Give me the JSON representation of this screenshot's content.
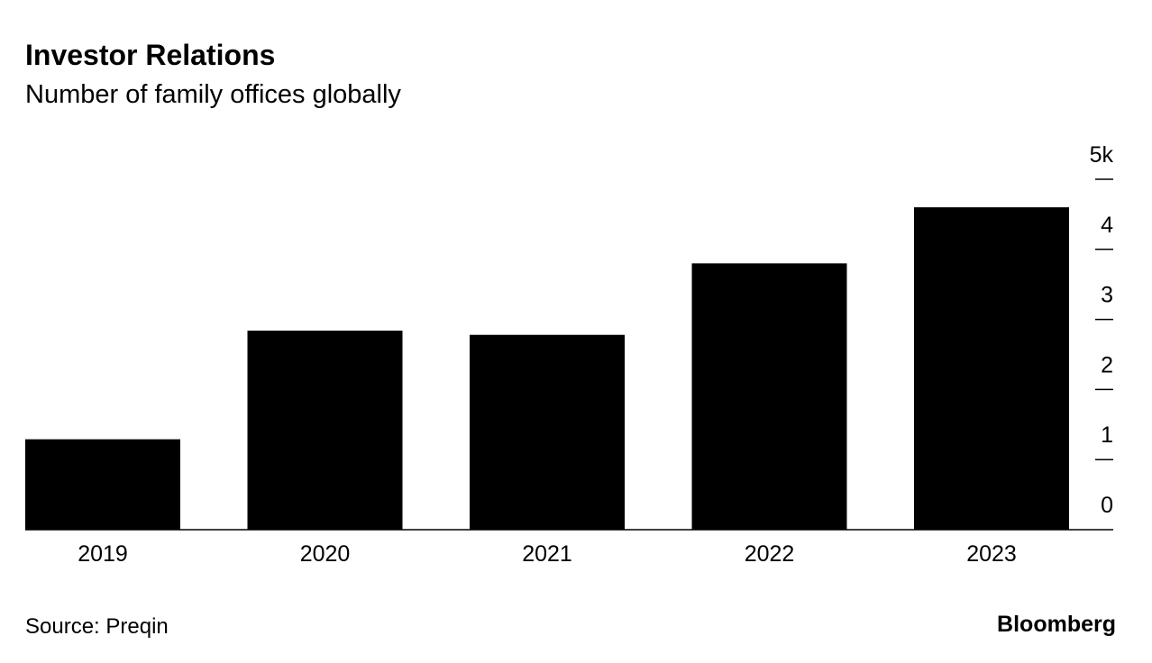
{
  "chart_data": {
    "type": "bar",
    "title": "Investor Relations",
    "subtitle": "Number of family offices globally",
    "categories": [
      "2019",
      "2020",
      "2021",
      "2022",
      "2023"
    ],
    "values": [
      1.29,
      2.84,
      2.78,
      3.8,
      4.6
    ],
    "color": "#000000",
    "ylim": [
      0,
      5
    ],
    "yticks": [
      0,
      1,
      2,
      3,
      4,
      {
        "value": 5,
        "label": "5k"
      }
    ],
    "source": "Source: Preqin",
    "brand": "Bloomberg"
  }
}
